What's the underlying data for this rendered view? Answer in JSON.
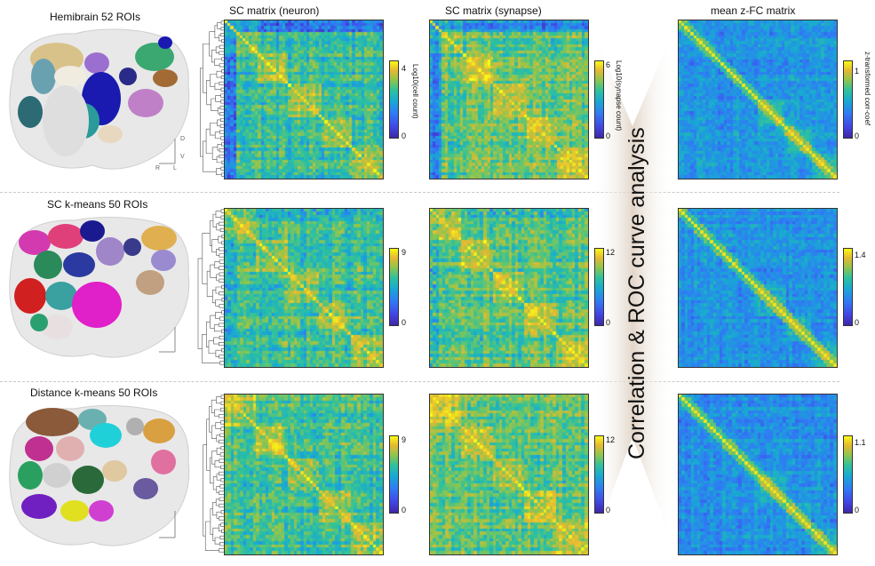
{
  "brain_rows": [
    {
      "title": "Hemibrain 52 ROIs"
    },
    {
      "title": "SC k-means 50 ROIs"
    },
    {
      "title": "Distance k-means 50 ROIs"
    }
  ],
  "column_headers": {
    "neuron": "SC matrix (neuron)",
    "synapse": "SC matrix (synapse)",
    "fc": "mean z-FC matrix"
  },
  "side_label": "Correlation & ROC curve analysis",
  "axis_letters": {
    "d": "D",
    "v": "V",
    "r": "R",
    "l": "L"
  },
  "matrices": [
    {
      "id": "r0-neuron",
      "row": 0,
      "kind": "sc-neuron",
      "cb_max": "4",
      "cb_min": "0",
      "cb_label": "Log10(cell count)",
      "n": 52
    },
    {
      "id": "r0-synapse",
      "row": 0,
      "kind": "sc-synapse",
      "cb_max": "6",
      "cb_min": "0",
      "cb_label": "Log10(synapse count)",
      "n": 52
    },
    {
      "id": "r0-fc",
      "row": 0,
      "kind": "fc",
      "cb_max": "1",
      "cb_min": "0",
      "cb_label": "z-transformed corr-coef",
      "n": 52
    },
    {
      "id": "r1-neuron",
      "row": 1,
      "kind": "sc-neuron",
      "cb_max": "9",
      "cb_min": "0",
      "cb_label": "",
      "n": 50
    },
    {
      "id": "r1-synapse",
      "row": 1,
      "kind": "sc-synapse",
      "cb_max": "12",
      "cb_min": "0",
      "cb_label": "",
      "n": 50
    },
    {
      "id": "r1-fc",
      "row": 1,
      "kind": "fc",
      "cb_max": "1.4",
      "cb_min": "0",
      "cb_label": "",
      "n": 50
    },
    {
      "id": "r2-neuron",
      "row": 2,
      "kind": "sc-neuron",
      "cb_max": "9",
      "cb_min": "0",
      "cb_label": "",
      "n": 50
    },
    {
      "id": "r2-synapse",
      "row": 2,
      "kind": "sc-synapse",
      "cb_max": "12",
      "cb_min": "0",
      "cb_label": "",
      "n": 50
    },
    {
      "id": "r2-fc",
      "row": 2,
      "kind": "fc",
      "cb_max": "1.1",
      "cb_min": "0",
      "cb_label": "",
      "n": 50
    }
  ],
  "colors": {
    "parula": [
      "#3e26a8",
      "#4148e6",
      "#2f7cf4",
      "#18a9d3",
      "#2fc29c",
      "#93c54b",
      "#e4b932",
      "#f9fb15"
    ],
    "funnel": "#e4d8cc",
    "brain_bg": "#e6e6e6"
  }
}
